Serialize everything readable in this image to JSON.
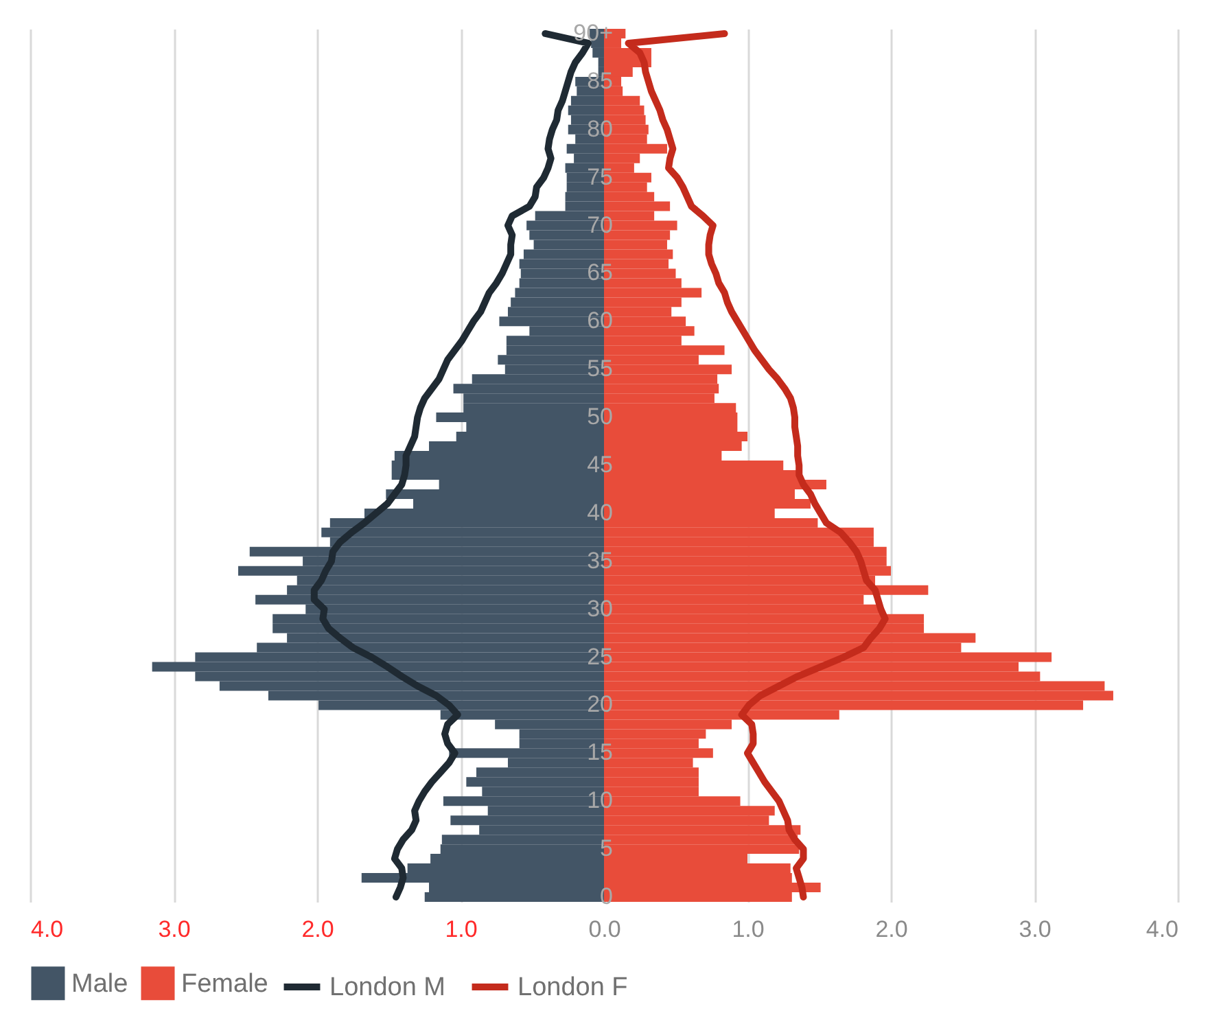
{
  "chart_data": {
    "type": "bar",
    "orientation": "horizontal",
    "categories": [
      "90+",
      null,
      null,
      null,
      null,
      "85",
      null,
      null,
      null,
      null,
      "80",
      null,
      null,
      null,
      null,
      "75",
      null,
      null,
      null,
      null,
      "70",
      null,
      null,
      null,
      null,
      "65",
      null,
      null,
      null,
      null,
      "60",
      null,
      null,
      null,
      null,
      "55",
      null,
      null,
      null,
      null,
      "50",
      null,
      null,
      null,
      null,
      "45",
      null,
      null,
      null,
      null,
      "40",
      null,
      null,
      null,
      null,
      "35",
      null,
      null,
      null,
      null,
      "30",
      null,
      null,
      null,
      null,
      "25",
      null,
      null,
      null,
      null,
      "20",
      null,
      null,
      null,
      null,
      "15",
      null,
      null,
      null,
      null,
      "10",
      null,
      null,
      null,
      null,
      "5",
      null,
      null,
      null,
      null,
      "0"
    ],
    "series": [
      {
        "name": "Male",
        "color": "#435566",
        "values": [
          -0.1,
          -0.09,
          -0.08,
          -0.04,
          -0.04,
          -0.2,
          -0.19,
          -0.23,
          -0.25,
          -0.23,
          -0.25,
          -0.2,
          -0.26,
          -0.21,
          -0.27,
          -0.26,
          -0.26,
          -0.27,
          -0.27,
          -0.48,
          -0.54,
          -0.52,
          -0.49,
          -0.56,
          -0.59,
          -0.58,
          -0.59,
          -0.62,
          -0.65,
          -0.67,
          -0.73,
          -0.52,
          -0.68,
          -0.68,
          -0.74,
          -0.69,
          -0.92,
          -1.05,
          -0.98,
          -0.98,
          -1.17,
          -0.96,
          -1.03,
          -1.22,
          -1.46,
          -1.48,
          -1.48,
          -1.15,
          -1.52,
          -1.33,
          -1.67,
          -1.91,
          -1.97,
          -1.91,
          -2.47,
          -2.1,
          -2.55,
          -2.14,
          -2.21,
          -2.43,
          -2.08,
          -2.31,
          -2.31,
          -2.21,
          -2.42,
          -2.85,
          -3.15,
          -2.85,
          -2.68,
          -2.34,
          -1.99,
          -1.14,
          -0.76,
          -0.59,
          -0.59,
          -1.08,
          -0.67,
          -0.89,
          -0.96,
          -0.85,
          -1.12,
          -0.81,
          -1.07,
          -0.87,
          -1.13,
          -1.14,
          -1.21,
          -1.37,
          -1.69,
          -1.22,
          -1.25
        ]
      },
      {
        "name": "Female",
        "color": "#e84c3a",
        "values": [
          0.15,
          0.12,
          0.33,
          0.33,
          0.2,
          0.12,
          0.13,
          0.25,
          0.28,
          0.29,
          0.31,
          0.3,
          0.44,
          0.25,
          0.21,
          0.33,
          0.3,
          0.35,
          0.46,
          0.35,
          0.51,
          0.46,
          0.44,
          0.48,
          0.45,
          0.5,
          0.54,
          0.68,
          0.54,
          0.47,
          0.57,
          0.63,
          0.54,
          0.84,
          0.66,
          0.89,
          0.79,
          0.8,
          0.77,
          0.92,
          0.93,
          0.93,
          1.0,
          0.96,
          0.82,
          1.25,
          1.35,
          1.55,
          1.33,
          1.44,
          1.19,
          1.49,
          1.88,
          1.88,
          1.97,
          1.97,
          2.0,
          1.89,
          2.26,
          1.81,
          1.92,
          2.23,
          2.23,
          2.59,
          2.49,
          3.12,
          2.89,
          3.04,
          3.49,
          3.55,
          3.34,
          1.64,
          0.89,
          0.71,
          0.66,
          0.76,
          0.62,
          0.66,
          0.66,
          0.66,
          0.95,
          1.19,
          1.15,
          1.37,
          1.35,
          1.36,
          1.0,
          1.3,
          1.31,
          1.51,
          1.31
        ]
      },
      {
        "name": "London M",
        "type": "line",
        "color": "#1f2a33",
        "values": [
          -0.41,
          -0.11,
          -0.15,
          -0.2,
          -0.23,
          -0.25,
          -0.27,
          -0.29,
          -0.32,
          -0.33,
          -0.36,
          -0.38,
          -0.39,
          -0.37,
          -0.39,
          -0.42,
          -0.47,
          -0.48,
          -0.52,
          -0.64,
          -0.67,
          -0.64,
          -0.65,
          -0.65,
          -0.68,
          -0.71,
          -0.75,
          -0.8,
          -0.83,
          -0.86,
          -0.91,
          -0.95,
          -0.99,
          -1.04,
          -1.09,
          -1.12,
          -1.15,
          -1.2,
          -1.25,
          -1.28,
          -1.3,
          -1.31,
          -1.32,
          -1.35,
          -1.38,
          -1.38,
          -1.39,
          -1.41,
          -1.46,
          -1.51,
          -1.59,
          -1.67,
          -1.76,
          -1.84,
          -1.89,
          -1.9,
          -1.94,
          -1.97,
          -2.02,
          -2.02,
          -1.95,
          -1.96,
          -1.92,
          -1.84,
          -1.75,
          -1.62,
          -1.51,
          -1.41,
          -1.3,
          -1.17,
          -1.08,
          -1.02,
          -1.09,
          -1.11,
          -1.09,
          -1.04,
          -1.08,
          -1.14,
          -1.2,
          -1.25,
          -1.29,
          -1.32,
          -1.31,
          -1.34,
          -1.4,
          -1.44,
          -1.46,
          -1.41,
          -1.4,
          -1.42,
          -1.45
        ]
      },
      {
        "name": "London F",
        "type": "line",
        "color": "#c42b1c",
        "values": [
          0.84,
          0.17,
          0.25,
          0.28,
          0.29,
          0.31,
          0.33,
          0.36,
          0.39,
          0.41,
          0.44,
          0.46,
          0.48,
          0.46,
          0.45,
          0.51,
          0.55,
          0.58,
          0.61,
          0.69,
          0.76,
          0.74,
          0.73,
          0.73,
          0.75,
          0.78,
          0.8,
          0.84,
          0.86,
          0.89,
          0.93,
          0.97,
          1.01,
          1.05,
          1.1,
          1.15,
          1.21,
          1.26,
          1.3,
          1.32,
          1.33,
          1.33,
          1.34,
          1.35,
          1.35,
          1.36,
          1.36,
          1.39,
          1.44,
          1.47,
          1.51,
          1.55,
          1.65,
          1.71,
          1.76,
          1.79,
          1.81,
          1.83,
          1.89,
          1.91,
          1.93,
          1.96,
          1.92,
          1.86,
          1.81,
          1.67,
          1.51,
          1.35,
          1.22,
          1.09,
          1.01,
          0.96,
          1.03,
          1.04,
          1.04,
          1.0,
          1.04,
          1.08,
          1.12,
          1.17,
          1.22,
          1.25,
          1.28,
          1.29,
          1.33,
          1.39,
          1.39,
          1.34,
          1.36,
          1.38,
          1.39
        ]
      }
    ],
    "xlim": [
      -4,
      4
    ],
    "xticks": [
      {
        "value": -4,
        "label": "4.0"
      },
      {
        "value": -3,
        "label": "3.0"
      },
      {
        "value": -2,
        "label": "2.0"
      },
      {
        "value": -1,
        "label": "1.0"
      },
      {
        "value": 0,
        "label": "0.0"
      },
      {
        "value": 1,
        "label": "1.0"
      },
      {
        "value": 2,
        "label": "2.0"
      },
      {
        "value": 3,
        "label": "3.0"
      },
      {
        "value": 4,
        "label": "4.0"
      }
    ],
    "stacked": true,
    "grid": "x",
    "legend": "bottom",
    "line_style": "solid"
  }
}
